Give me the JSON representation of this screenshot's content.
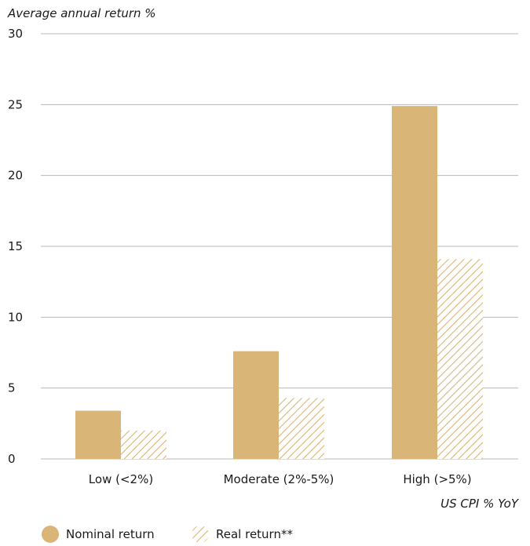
{
  "chart_data": {
    "type": "bar",
    "ylabel": "Average annual return %",
    "xlabel": "US CPI % YoY",
    "categories": [
      "Low (<2%)",
      "Moderate (2%-5%)",
      "High (>5%)"
    ],
    "series": [
      {
        "name": "Nominal return",
        "values": [
          3.4,
          7.6,
          24.9
        ],
        "style": "solid"
      },
      {
        "name": "Real return**",
        "values": [
          2.0,
          4.3,
          14.1
        ],
        "style": "hatched"
      }
    ],
    "ylim": [
      0,
      30
    ],
    "yticks": [
      0,
      5,
      10,
      15,
      20,
      25,
      30
    ],
    "grid": true,
    "legend_position": "bottom-left",
    "colors": {
      "bar": "#d9b678",
      "hatch": "#d9b678",
      "grid": "#b8b8b8"
    }
  }
}
